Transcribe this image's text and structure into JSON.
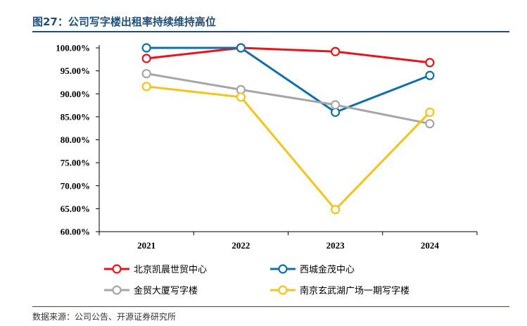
{
  "header": {
    "title": "图27：公司写字楼出租率持续维持高位"
  },
  "footer": {
    "source": "数据来源：公司公告、开源证券研究所"
  },
  "chart_data": {
    "type": "line",
    "title": "图27：公司写字楼出租率持续维持高位",
    "xlabel": "",
    "ylabel": "",
    "categories": [
      "2021",
      "2022",
      "2023",
      "2024"
    ],
    "ylim": [
      60,
      100
    ],
    "yticks": [
      60,
      65,
      70,
      75,
      80,
      85,
      90,
      95,
      100
    ],
    "ytick_labels": [
      "60.00%",
      "65.00%",
      "70.00%",
      "75.00%",
      "80.00%",
      "85.00%",
      "90.00%",
      "95.00%",
      "100.00%"
    ],
    "grid": false,
    "legend_position": "bottom",
    "series": [
      {
        "name": "北京凯晨世贸中心",
        "color": "#e8141b",
        "values": [
          97.7,
          100.0,
          99.2,
          96.8
        ]
      },
      {
        "name": "西城金茂中心",
        "color": "#1070aa",
        "values": [
          100.0,
          100.0,
          86.0,
          94.0
        ]
      },
      {
        "name": "金贸大厦写字楼",
        "color": "#a6a6a6",
        "values": [
          94.4,
          90.9,
          87.6,
          83.5
        ]
      },
      {
        "name": "南京玄武湖广场一期写字楼",
        "color": "#f5c31a",
        "values": [
          91.6,
          89.3,
          64.8,
          86.0
        ]
      }
    ]
  }
}
